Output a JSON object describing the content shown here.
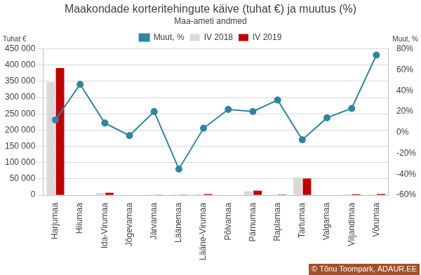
{
  "chart_data": {
    "type": "bar",
    "title": "Maakondade korteritehingute käive (tuhat €) ja muutus (%)",
    "subtitle": "Maa-ameti andmed",
    "y_label": "Tuhat €",
    "y2_label": "Muut, %",
    "annotations": [
      "© Tõnu Toompark, ADAUR.EE"
    ],
    "categories": [
      "Harjumaa",
      "Hiiumaa",
      "Ida-Virumaa",
      "Jõgevamaa",
      "Järvamaa",
      "Läänemaa",
      "Lääne-Virumaa",
      "Põlvamaa",
      "Pärnumaa",
      "Raplamaa",
      "Tartumaa",
      "Valgamaa",
      "Viljandimaa",
      "Võrumaa"
    ],
    "series": [
      {
        "name": "IV 2018",
        "type": "bar",
        "color": "#d9d9d9",
        "values": [
          348000,
          700,
          7000,
          800,
          1200,
          2000,
          3500,
          700,
          11500,
          1500,
          55000,
          700,
          2500,
          2000
        ]
      },
      {
        "name": "IV 2019",
        "type": "bar",
        "color": "#c00000",
        "values": [
          391000,
          1000,
          7600,
          780,
          1440,
          1300,
          3640,
          850,
          13800,
          1960,
          51000,
          800,
          3070,
          3470
        ]
      },
      {
        "name": "Muut, %",
        "type": "line",
        "color": "#31859c",
        "marker": "circle",
        "axis": "y2",
        "values": [
          12,
          46,
          9,
          -3,
          20,
          -35,
          4,
          22,
          20,
          31,
          -7,
          14,
          23,
          74
        ]
      }
    ],
    "ylim": [
      0,
      450000
    ],
    "yticks": [
      0,
      {
        "value": 50000,
        "label": "50 000"
      },
      {
        "value": 100000,
        "label": "100 000"
      },
      {
        "value": 150000,
        "label": "150 000"
      },
      {
        "value": 200000,
        "label": "200 000"
      },
      {
        "value": 250000,
        "label": "250 000"
      },
      {
        "value": 300000,
        "label": "300 000"
      },
      {
        "value": 350000,
        "label": "350 000"
      },
      {
        "value": 400000,
        "label": "400 000"
      },
      {
        "value": 450000,
        "label": "450 000"
      }
    ],
    "y2lim": [
      -60,
      80
    ],
    "y2ticks": [
      {
        "value": -60,
        "label": "-60%"
      },
      {
        "value": -40,
        "label": "-40%"
      },
      {
        "value": -20,
        "label": "-20%"
      },
      {
        "value": 0,
        "label": "0%"
      },
      {
        "value": 20,
        "label": "20%"
      },
      {
        "value": 40,
        "label": "40%"
      },
      {
        "value": 60,
        "label": "60%"
      },
      {
        "value": 80,
        "label": "80%"
      }
    ],
    "grid": true,
    "legend": "top"
  }
}
